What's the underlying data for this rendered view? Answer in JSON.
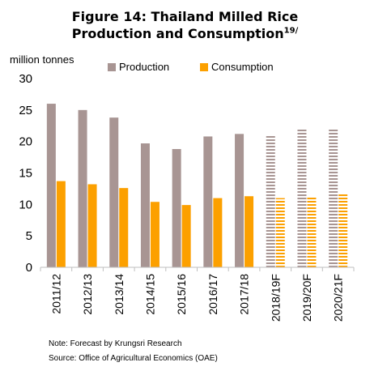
{
  "header": {
    "title_line1": "Figure 14: Thailand Milled Rice",
    "title_line2": "Production and Consumption",
    "title_sup": "19/"
  },
  "chart_data": {
    "type": "bar",
    "ylabel": "million tonnes",
    "ylim": [
      0,
      30
    ],
    "yticks": [
      "0",
      "5",
      "10",
      "15",
      "20",
      "25",
      "30"
    ],
    "grid": false,
    "legend_position": "top",
    "categories": [
      "2011/12",
      "2012/13",
      "2013/14",
      "2014/15",
      "2015/16",
      "2016/17",
      "2017/18",
      "2018/19F",
      "2019/20F",
      "2020/21F"
    ],
    "forecast_categories": [
      "2018/19F",
      "2019/20F",
      "2020/21F"
    ],
    "series": [
      {
        "name": "Production",
        "color": "#a89593",
        "values": [
          26.0,
          25.0,
          23.8,
          19.7,
          18.8,
          20.8,
          21.2,
          21.0,
          21.9,
          21.9
        ]
      },
      {
        "name": "Consumption",
        "color": "#fca000",
        "values": [
          13.7,
          13.2,
          12.6,
          10.4,
          9.9,
          11.0,
          11.3,
          11.0,
          11.3,
          11.8
        ]
      }
    ]
  },
  "notes": {
    "note": "Note: Forecast by Krungsri Research",
    "source": "Source: Office of Agricultural Economics (OAE)"
  }
}
